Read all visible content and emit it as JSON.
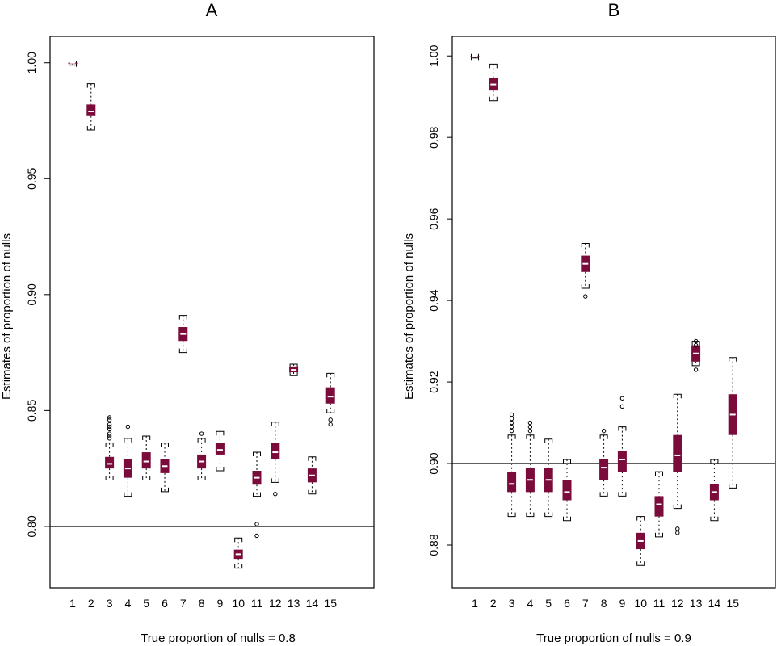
{
  "colors": {
    "box_fill": "#7a0b3a",
    "median": "#ffffff",
    "line": "#000000"
  },
  "chart_data": [
    {
      "type": "boxplot",
      "title": "A",
      "xlabel": "True proportion of nulls =  0.8",
      "ylabel": "Estimates of  proportion of  nulls",
      "categories": [
        "1",
        "2",
        "3",
        "4",
        "5",
        "6",
        "7",
        "8",
        "9",
        "10",
        "11",
        "12",
        "13",
        "14",
        "15"
      ],
      "ylim": [
        0.7735,
        1.0114
      ],
      "yticks": [
        0.8,
        0.85,
        0.9,
        0.95,
        1.0
      ],
      "ytick_labels": [
        "0.80",
        "0.85",
        "0.90",
        "0.95",
        "1.00"
      ],
      "reference_line": 0.8,
      "boxes": [
        {
          "min": 0.999,
          "q1": 0.9995,
          "median": 1.0,
          "q3": 1.0,
          "max": 1.0,
          "outliers": []
        },
        {
          "min": 0.971,
          "q1": 0.977,
          "median": 0.979,
          "q3": 0.982,
          "max": 0.991,
          "outliers": []
        },
        {
          "min": 0.82,
          "q1": 0.825,
          "median": 0.827,
          "q3": 0.83,
          "max": 0.836,
          "outliers": [
            0.838,
            0.839,
            0.84,
            0.842,
            0.843,
            0.844,
            0.846,
            0.847
          ]
        },
        {
          "min": 0.813,
          "q1": 0.821,
          "median": 0.825,
          "q3": 0.829,
          "max": 0.838,
          "outliers": [
            0.843
          ]
        },
        {
          "min": 0.82,
          "q1": 0.825,
          "median": 0.828,
          "q3": 0.832,
          "max": 0.839,
          "outliers": []
        },
        {
          "min": 0.815,
          "q1": 0.823,
          "median": 0.826,
          "q3": 0.829,
          "max": 0.836,
          "outliers": []
        },
        {
          "min": 0.875,
          "q1": 0.88,
          "median": 0.883,
          "q3": 0.886,
          "max": 0.891,
          "outliers": []
        },
        {
          "min": 0.82,
          "q1": 0.825,
          "median": 0.828,
          "q3": 0.831,
          "max": 0.838,
          "outliers": [
            0.84
          ]
        },
        {
          "min": 0.824,
          "q1": 0.831,
          "median": 0.833,
          "q3": 0.836,
          "max": 0.841,
          "outliers": []
        },
        {
          "min": 0.782,
          "q1": 0.786,
          "median": 0.788,
          "q3": 0.79,
          "max": 0.795,
          "outliers": []
        },
        {
          "min": 0.813,
          "q1": 0.818,
          "median": 0.821,
          "q3": 0.824,
          "max": 0.832,
          "outliers": [
            0.796,
            0.801
          ]
        },
        {
          "min": 0.819,
          "q1": 0.829,
          "median": 0.832,
          "q3": 0.836,
          "max": 0.845,
          "outliers": [
            0.814
          ]
        },
        {
          "min": 0.865,
          "q1": 0.8665,
          "median": 0.8675,
          "q3": 0.869,
          "max": 0.87,
          "outliers": []
        },
        {
          "min": 0.814,
          "q1": 0.819,
          "median": 0.822,
          "q3": 0.825,
          "max": 0.83,
          "outliers": []
        },
        {
          "min": 0.849,
          "q1": 0.853,
          "median": 0.856,
          "q3": 0.86,
          "max": 0.866,
          "outliers": [
            0.844,
            0.846
          ]
        }
      ]
    },
    {
      "type": "boxplot",
      "title": "B",
      "xlabel": "True proportion of nulls =  0.9",
      "ylabel": "Estimates of  proportion of  nulls",
      "categories": [
        "1",
        "2",
        "3",
        "4",
        "5",
        "6",
        "7",
        "8",
        "9",
        "10",
        "11",
        "12",
        "13",
        "14",
        "15"
      ],
      "ylim": [
        0.8695,
        1.0048
      ],
      "yticks": [
        0.88,
        0.9,
        0.92,
        0.94,
        0.96,
        0.98,
        1.0
      ],
      "ytick_labels": [
        "0.88",
        "0.90",
        "0.92",
        "0.94",
        "0.96",
        "0.98",
        "1.00"
      ],
      "reference_line": 0.9,
      "boxes": [
        {
          "min": 0.9995,
          "q1": 0.9998,
          "median": 1.0,
          "q3": 1.0,
          "max": 1.0,
          "outliers": []
        },
        {
          "min": 0.989,
          "q1": 0.9915,
          "median": 0.993,
          "q3": 0.9945,
          "max": 0.998,
          "outliers": []
        },
        {
          "min": 0.887,
          "q1": 0.893,
          "median": 0.895,
          "q3": 0.898,
          "max": 0.907,
          "outliers": [
            0.908,
            0.909,
            0.91,
            0.911,
            0.912
          ]
        },
        {
          "min": 0.887,
          "q1": 0.893,
          "median": 0.896,
          "q3": 0.899,
          "max": 0.907,
          "outliers": [
            0.908,
            0.909,
            0.91
          ]
        },
        {
          "min": 0.887,
          "q1": 0.893,
          "median": 0.896,
          "q3": 0.899,
          "max": 0.906,
          "outliers": []
        },
        {
          "min": 0.886,
          "q1": 0.891,
          "median": 0.893,
          "q3": 0.896,
          "max": 0.901,
          "outliers": []
        },
        {
          "min": 0.943,
          "q1": 0.947,
          "median": 0.949,
          "q3": 0.951,
          "max": 0.954,
          "outliers": [
            0.941
          ]
        },
        {
          "min": 0.892,
          "q1": 0.896,
          "median": 0.899,
          "q3": 0.901,
          "max": 0.907,
          "outliers": [
            0.908
          ]
        },
        {
          "min": 0.892,
          "q1": 0.898,
          "median": 0.901,
          "q3": 0.903,
          "max": 0.909,
          "outliers": [
            0.914,
            0.916
          ]
        },
        {
          "min": 0.875,
          "q1": 0.879,
          "median": 0.881,
          "q3": 0.883,
          "max": 0.887,
          "outliers": []
        },
        {
          "min": 0.882,
          "q1": 0.887,
          "median": 0.89,
          "q3": 0.892,
          "max": 0.898,
          "outliers": []
        },
        {
          "min": 0.889,
          "q1": 0.898,
          "median": 0.902,
          "q3": 0.907,
          "max": 0.917,
          "outliers": [
            0.883,
            0.884
          ]
        },
        {
          "min": 0.924,
          "q1": 0.925,
          "median": 0.927,
          "q3": 0.929,
          "max": 0.93,
          "outliers": [
            0.923,
            0.929,
            0.93
          ]
        },
        {
          "min": 0.886,
          "q1": 0.891,
          "median": 0.893,
          "q3": 0.895,
          "max": 0.901,
          "outliers": []
        },
        {
          "min": 0.894,
          "q1": 0.907,
          "median": 0.912,
          "q3": 0.917,
          "max": 0.926,
          "outliers": []
        }
      ]
    }
  ]
}
